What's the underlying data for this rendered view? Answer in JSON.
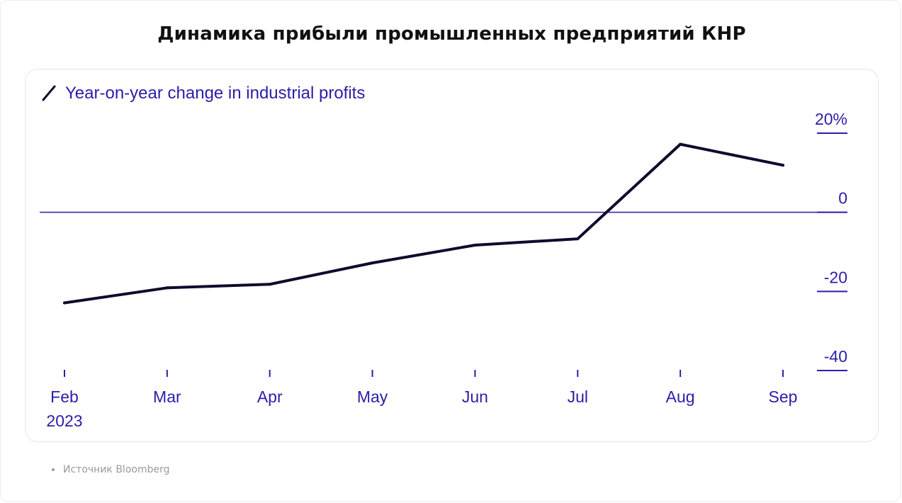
{
  "page": {
    "title": "Динамика прибыли промышленных предприятий КНР",
    "source_label": "Источник Bloomberg"
  },
  "colors": {
    "accent": "#2b1ea8",
    "line": "#0f0a2e",
    "zero_line": "#2b1ea8"
  },
  "chart_data": {
    "type": "line",
    "legend_icon": "line-icon",
    "series": [
      {
        "name": "Year-on-year change in industrial profits",
        "x": [
          "Feb",
          "Mar",
          "Apr",
          "May",
          "Jun",
          "Jul",
          "Aug",
          "Sep"
        ],
        "values": [
          -22.9,
          -19.1,
          -18.2,
          -12.8,
          -8.3,
          -6.7,
          17.2,
          11.9
        ]
      }
    ],
    "categories": [
      "Feb",
      "Mar",
      "Apr",
      "May",
      "Jun",
      "Jul",
      "Aug",
      "Sep"
    ],
    "x_sublabel": "2023",
    "y_ticks": [
      "20%",
      "0",
      "-20",
      "-40"
    ],
    "y_tick_values": [
      20,
      0,
      -20,
      -40
    ],
    "ylim": [
      -40,
      20
    ],
    "y_axis_side": "right",
    "grid": false,
    "legend_position": "top-left"
  }
}
